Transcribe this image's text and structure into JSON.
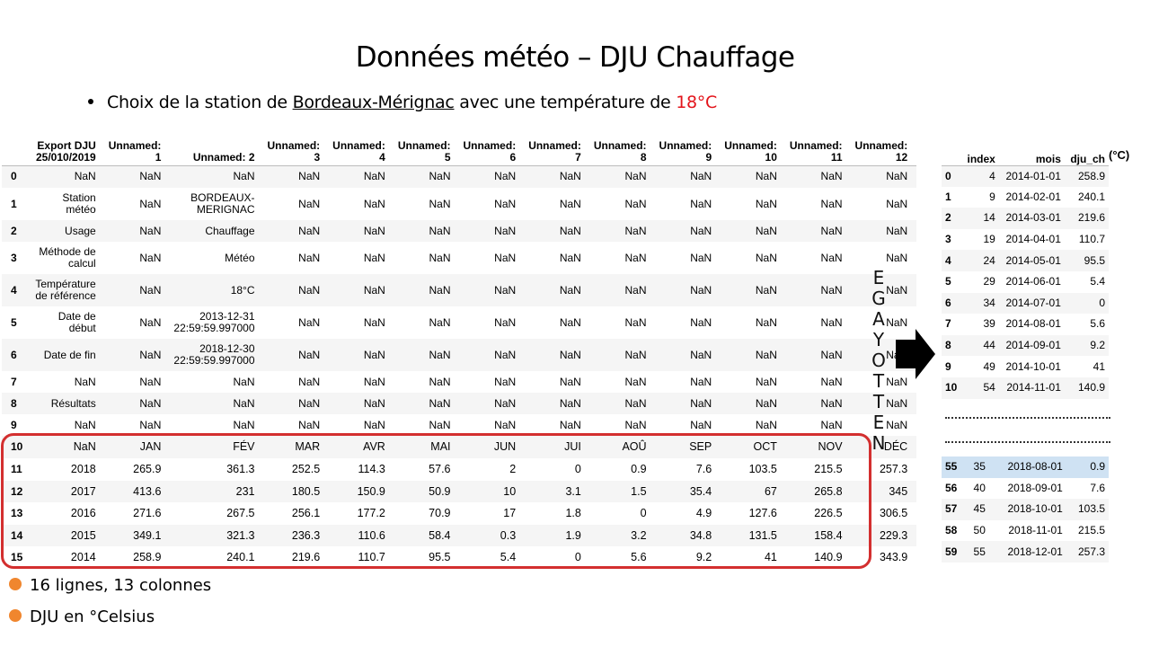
{
  "title": "Données météo – DJU Chauffage",
  "bullet": {
    "before": "Choix de la station de ",
    "station": "Bordeaux-Mérignac",
    "middle": " avec une température de ",
    "temp": "18°C"
  },
  "raw_table": {
    "columns": [
      "Export DJU 25/010/2019",
      "Unnamed: 1",
      "Unnamed: 2",
      "Unnamed: 3",
      "Unnamed: 4",
      "Unnamed: 5",
      "Unnamed: 6",
      "Unnamed: 7",
      "Unnamed: 8",
      "Unnamed: 9",
      "Unnamed: 10",
      "Unnamed: 11",
      "Unnamed: 12"
    ],
    "rows": [
      {
        "index": "0",
        "cells": [
          "NaN",
          "NaN",
          "NaN",
          "NaN",
          "NaN",
          "NaN",
          "NaN",
          "NaN",
          "NaN",
          "NaN",
          "NaN",
          "NaN",
          "NaN"
        ]
      },
      {
        "index": "1",
        "cells": [
          "Station météo",
          "NaN",
          "BORDEAUX-MERIGNAC",
          "NaN",
          "NaN",
          "NaN",
          "NaN",
          "NaN",
          "NaN",
          "NaN",
          "NaN",
          "NaN",
          "NaN"
        ]
      },
      {
        "index": "2",
        "cells": [
          "Usage",
          "NaN",
          "Chauffage",
          "NaN",
          "NaN",
          "NaN",
          "NaN",
          "NaN",
          "NaN",
          "NaN",
          "NaN",
          "NaN",
          "NaN"
        ]
      },
      {
        "index": "3",
        "cells": [
          "Méthode de calcul",
          "NaN",
          "Météo",
          "NaN",
          "NaN",
          "NaN",
          "NaN",
          "NaN",
          "NaN",
          "NaN",
          "NaN",
          "NaN",
          "NaN"
        ]
      },
      {
        "index": "4",
        "cells": [
          "Température de référence",
          "NaN",
          "18°C",
          "NaN",
          "NaN",
          "NaN",
          "NaN",
          "NaN",
          "NaN",
          "NaN",
          "NaN",
          "NaN",
          "NaN"
        ]
      },
      {
        "index": "5",
        "cells": [
          "Date de début",
          "NaN",
          "2013-12-31 22:59:59.997000",
          "NaN",
          "NaN",
          "NaN",
          "NaN",
          "NaN",
          "NaN",
          "NaN",
          "NaN",
          "NaN",
          "NaN"
        ]
      },
      {
        "index": "6",
        "cells": [
          "Date de fin",
          "NaN",
          "2018-12-30 22:59:59.997000",
          "NaN",
          "NaN",
          "NaN",
          "NaN",
          "NaN",
          "NaN",
          "NaN",
          "NaN",
          "NaN",
          "NaN"
        ]
      },
      {
        "index": "7",
        "cells": [
          "NaN",
          "NaN",
          "NaN",
          "NaN",
          "NaN",
          "NaN",
          "NaN",
          "NaN",
          "NaN",
          "NaN",
          "NaN",
          "NaN",
          "NaN"
        ]
      },
      {
        "index": "8",
        "cells": [
          "Résultats",
          "NaN",
          "NaN",
          "NaN",
          "NaN",
          "NaN",
          "NaN",
          "NaN",
          "NaN",
          "NaN",
          "NaN",
          "NaN",
          "NaN"
        ]
      },
      {
        "index": "9",
        "cells": [
          "NaN",
          "NaN",
          "NaN",
          "NaN",
          "NaN",
          "NaN",
          "NaN",
          "NaN",
          "NaN",
          "NaN",
          "NaN",
          "NaN",
          "NaN"
        ]
      },
      {
        "index": "10",
        "cells": [
          "NaN",
          "JAN",
          "FÉV",
          "MAR",
          "AVR",
          "MAI",
          "JUN",
          "JUI",
          "AOÛ",
          "SEP",
          "OCT",
          "NOV",
          "DÉC"
        ]
      },
      {
        "index": "11",
        "cells": [
          "2018",
          "265.9",
          "361.3",
          "252.5",
          "114.3",
          "57.6",
          "2",
          "0",
          "0.9",
          "7.6",
          "103.5",
          "215.5",
          "257.3"
        ]
      },
      {
        "index": "12",
        "cells": [
          "2017",
          "413.6",
          "231",
          "180.5",
          "150.9",
          "50.9",
          "10",
          "3.1",
          "1.5",
          "35.4",
          "67",
          "265.8",
          "345"
        ]
      },
      {
        "index": "13",
        "cells": [
          "2016",
          "271.6",
          "267.5",
          "256.1",
          "177.2",
          "70.9",
          "17",
          "1.8",
          "0",
          "4.9",
          "127.6",
          "226.5",
          "306.5"
        ]
      },
      {
        "index": "14",
        "cells": [
          "2015",
          "349.1",
          "321.3",
          "236.3",
          "110.6",
          "58.4",
          "0.3",
          "1.9",
          "3.2",
          "34.8",
          "131.5",
          "158.4",
          "229.3"
        ]
      },
      {
        "index": "15",
        "cells": [
          "2014",
          "258.9",
          "240.1",
          "219.6",
          "110.7",
          "95.5",
          "5.4",
          "0",
          "5.6",
          "9.2",
          "41",
          "140.9",
          "343.9"
        ]
      }
    ]
  },
  "stats": [
    "16 lignes, 13 colonnes",
    "DJU en °Celsius"
  ],
  "cleaning_label": "NETTOYAGE",
  "clean_table": {
    "columns": [
      "index",
      "mois",
      "dju_ch"
    ],
    "unit": "(°C)",
    "rows_top": [
      {
        "index": "0",
        "cells": [
          "4",
          "2014-01-01",
          "258.9"
        ]
      },
      {
        "index": "1",
        "cells": [
          "9",
          "2014-02-01",
          "240.1"
        ]
      },
      {
        "index": "2",
        "cells": [
          "14",
          "2014-03-01",
          "219.6"
        ]
      },
      {
        "index": "3",
        "cells": [
          "19",
          "2014-04-01",
          "110.7"
        ]
      },
      {
        "index": "4",
        "cells": [
          "24",
          "2014-05-01",
          "95.5"
        ]
      },
      {
        "index": "5",
        "cells": [
          "29",
          "2014-06-01",
          "5.4"
        ]
      },
      {
        "index": "6",
        "cells": [
          "34",
          "2014-07-01",
          "0"
        ]
      },
      {
        "index": "7",
        "cells": [
          "39",
          "2014-08-01",
          "5.6"
        ]
      },
      {
        "index": "8",
        "cells": [
          "44",
          "2014-09-01",
          "9.2"
        ]
      },
      {
        "index": "9",
        "cells": [
          "49",
          "2014-10-01",
          "41"
        ]
      },
      {
        "index": "10",
        "cells": [
          "54",
          "2014-11-01",
          "140.9"
        ]
      }
    ],
    "rows_bottom": [
      {
        "index": "55",
        "cells": [
          "35",
          "2018-08-01",
          "0.9"
        ]
      },
      {
        "index": "56",
        "cells": [
          "40",
          "2018-09-01",
          "7.6"
        ]
      },
      {
        "index": "57",
        "cells": [
          "45",
          "2018-10-01",
          "103.5"
        ]
      },
      {
        "index": "58",
        "cells": [
          "50",
          "2018-11-01",
          "215.5"
        ]
      },
      {
        "index": "59",
        "cells": [
          "55",
          "2018-12-01",
          "257.3"
        ]
      }
    ]
  },
  "colors": {
    "accent_red": "#e3141b",
    "box_red": "#d32f2f",
    "orange": "#f0862e",
    "highlight": "#cfe2f3"
  }
}
